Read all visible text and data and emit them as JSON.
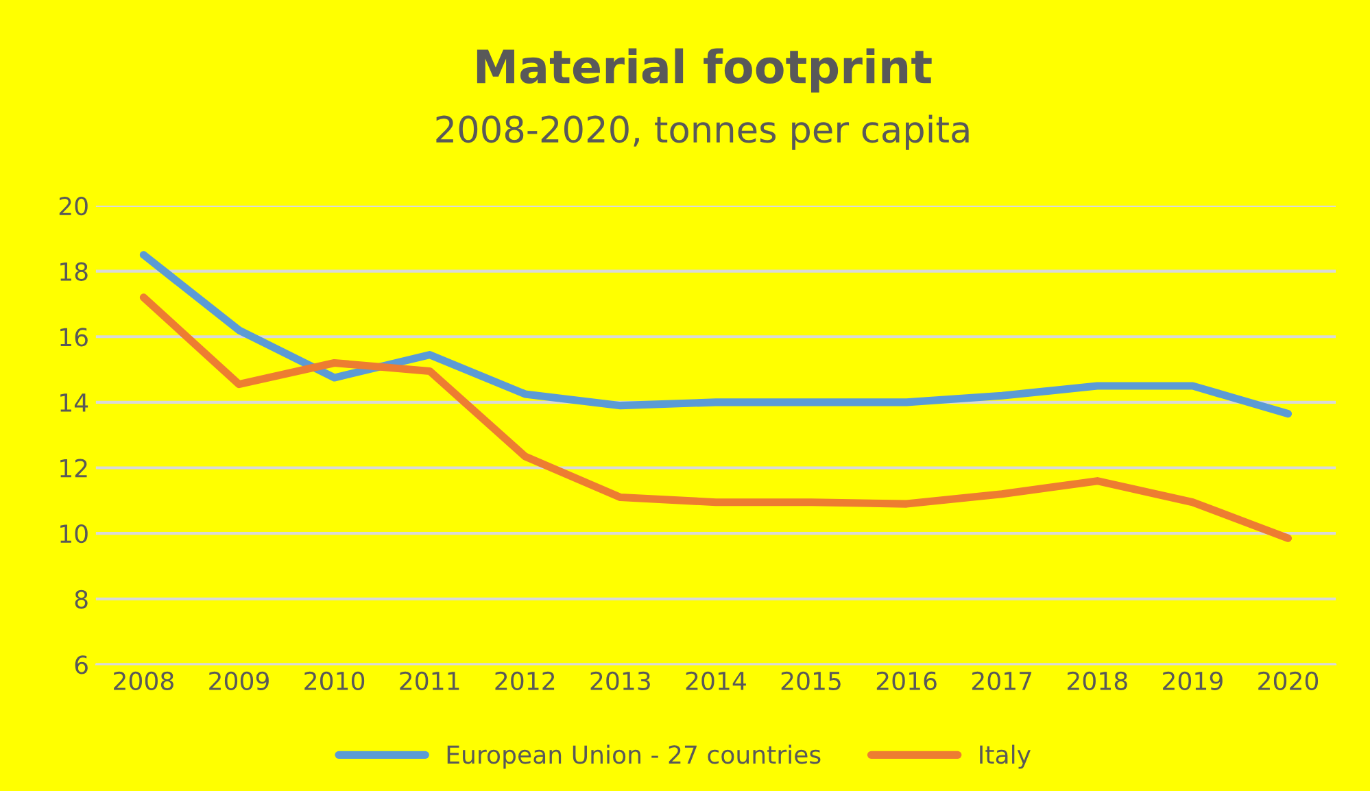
{
  "chart_data": {
    "type": "line",
    "title": "Material footprint",
    "subtitle": "2008-2020, tonnes per capita",
    "categories": [
      "2008",
      "2009",
      "2010",
      "2011",
      "2012",
      "2013",
      "2014",
      "2015",
      "2016",
      "2017",
      "2018",
      "2019",
      "2020"
    ],
    "series": [
      {
        "name": "European Union - 27 countries",
        "color": "#5b9bd5",
        "values": [
          18.5,
          16.2,
          14.75,
          15.45,
          14.25,
          13.9,
          14.0,
          14.0,
          14.0,
          14.2,
          14.5,
          14.5,
          13.65
        ]
      },
      {
        "name": "Italy",
        "color": "#ed7d31",
        "values": [
          17.2,
          14.55,
          15.2,
          14.95,
          12.35,
          11.1,
          10.95,
          10.95,
          10.9,
          11.2,
          11.6,
          10.95,
          9.85
        ]
      }
    ],
    "ylim": [
      6,
      20
    ],
    "yticks": [
      6,
      8,
      10,
      12,
      14,
      16,
      18,
      20
    ],
    "grid": "y",
    "legend": "bottom",
    "marker": "none",
    "line_style": "solid"
  }
}
